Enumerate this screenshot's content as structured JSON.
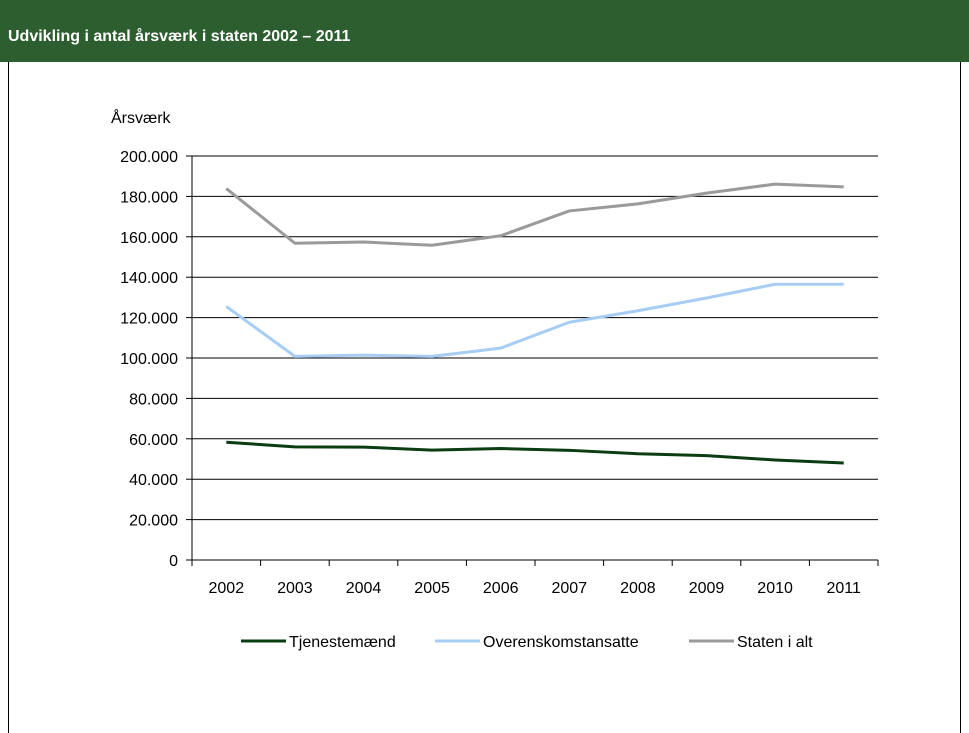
{
  "header": {
    "title": "Udvikling i antal årsværk i staten 2002 – 2011"
  },
  "chart_data": {
    "type": "line",
    "title": "Udvikling i antal årsværk i staten 2002 – 2011",
    "ylabel": "Årsværk",
    "xlabel": "",
    "categories": [
      "2002",
      "2003",
      "2004",
      "2005",
      "2006",
      "2007",
      "2008",
      "2009",
      "2010",
      "2011"
    ],
    "ylim": [
      0,
      200000
    ],
    "yticks": [
      0,
      20000,
      40000,
      60000,
      80000,
      100000,
      120000,
      140000,
      160000,
      180000,
      200000
    ],
    "ytick_labels": [
      "0",
      "20.000",
      "40.000",
      "60.000",
      "80.000",
      "100.000",
      "120.000",
      "140.000",
      "160.000",
      "180.000",
      "200.000"
    ],
    "grid": "horizontal",
    "legend_position": "bottom",
    "series": [
      {
        "name": "Tjenestemænd",
        "color": "#0b3d12",
        "values": [
          58300,
          56000,
          55900,
          54400,
          55200,
          54300,
          52600,
          51700,
          49500,
          48000
        ]
      },
      {
        "name": "Overenskomstansatte",
        "color": "#a7cdf5",
        "values": [
          125500,
          100800,
          101400,
          100800,
          104900,
          117700,
          123400,
          129700,
          136500,
          136500
        ]
      },
      {
        "name": "Staten i alt",
        "color": "#9a9a9a",
        "values": [
          183900,
          156800,
          157400,
          155800,
          160500,
          172800,
          176300,
          181600,
          186100,
          184700
        ]
      }
    ]
  }
}
